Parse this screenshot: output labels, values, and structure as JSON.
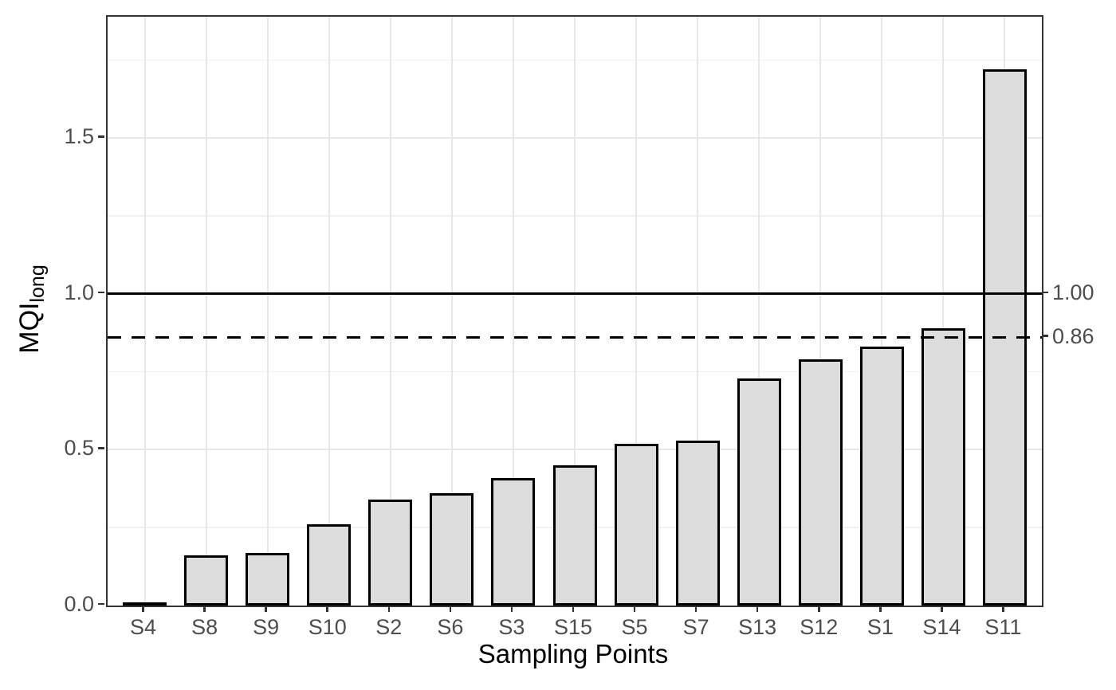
{
  "chart_data": {
    "type": "bar",
    "title": "",
    "xlabel": "Sampling Points",
    "ylabel_main": "MQI",
    "ylabel_sub": "long",
    "categories": [
      "S4",
      "S8",
      "S9",
      "S10",
      "S2",
      "S6",
      "S3",
      "S15",
      "S5",
      "S7",
      "S13",
      "S12",
      "S1",
      "S14",
      "S11"
    ],
    "values": [
      0.0,
      0.16,
      0.17,
      0.26,
      0.34,
      0.36,
      0.41,
      0.45,
      0.52,
      0.53,
      0.73,
      0.79,
      0.83,
      0.89,
      1.72
    ],
    "ylim": [
      0,
      1.89
    ],
    "y_ticks": {
      "values": [
        0.0,
        0.5,
        1.0,
        1.5
      ],
      "labels": [
        "0.0",
        "0.5",
        "1.0",
        "1.5"
      ]
    },
    "y_minor_ticks": [
      0.25,
      0.75,
      1.25,
      1.75
    ],
    "reference_lines": [
      {
        "value": 1.0,
        "label": "1.00",
        "style": "solid"
      },
      {
        "value": 0.86,
        "label": "0.86",
        "style": "dashed"
      }
    ],
    "legend": "none",
    "grid": "horizontal major+minor, vertical major at category centers",
    "colors": {
      "bar_fill": "#dcdcdc",
      "bar_border": "#000000",
      "panel_border": "#333333",
      "grid_major": "#e7e7e7",
      "grid_minor": "#f1f1f1",
      "tick_mark": "#333333",
      "tick_label": "#4d4d4d",
      "axis_title": "#000000",
      "reference_line": "#000000",
      "background": "#ffffff"
    }
  }
}
